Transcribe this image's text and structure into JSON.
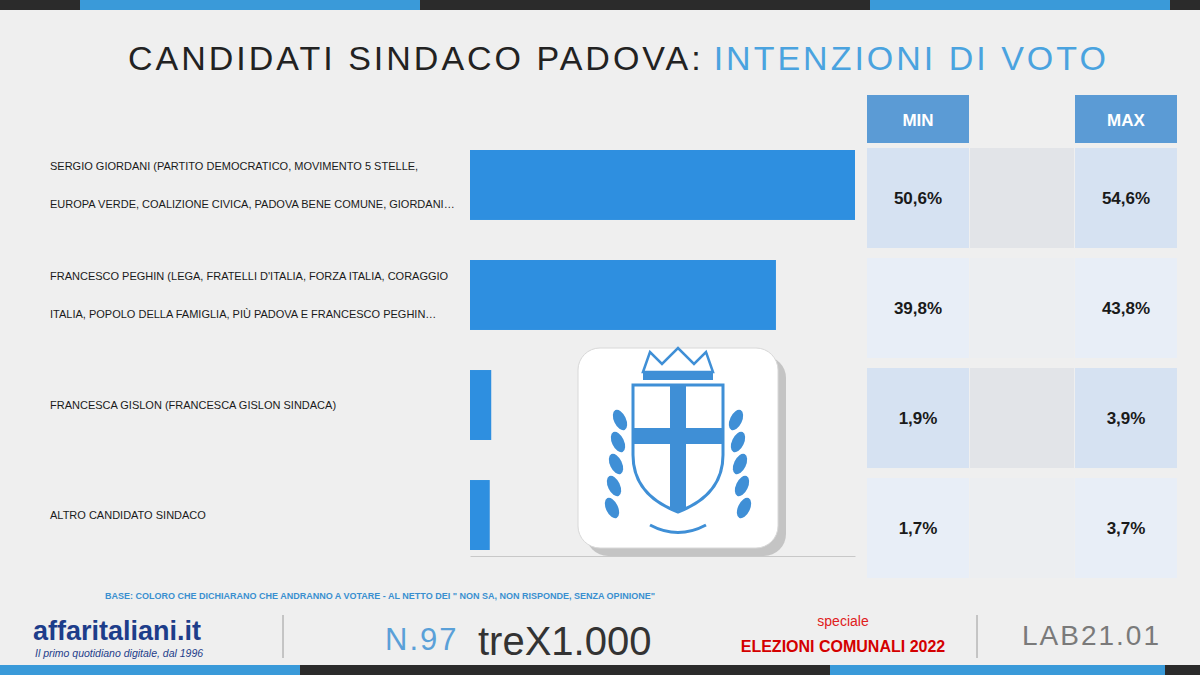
{
  "chart_data": {
    "type": "bar",
    "orientation": "horizontal",
    "title": "CANDIDATI SINDACO PADOVA:",
    "subtitle": "INTENZIONI DI VOTO",
    "categories": [
      "SERGIO GIORDANI (PARTITO DEMOCRATICO, MOVIMENTO 5 STELLE, EUROPA VERDE, COALIZIONE CIVICA, PADOVA BENE COMUNE, GIORDANI…",
      "FRANCESCO PEGHIN (LEGA, FRATELLI D'ITALIA, FORZA ITALIA, CORAGGIO ITALIA, POPOLO DELLA FAMIGLIA, PIÙ PADOVA E FRANCESCO PEGHIN…",
      "FRANCESCA GISLON (FRANCESCA GISLON SINDACA)",
      "ALTRO CANDIDATO SINDACO"
    ],
    "values": [
      52.6,
      41.8,
      2.9,
      2.7
    ],
    "color": "#2e8fe0",
    "xlim": [
      0,
      52.6
    ],
    "xticks": [],
    "tick_labels": false,
    "grid": false,
    "data_labels": false,
    "table": {
      "columns": [
        "MIN",
        "MAX"
      ],
      "rows": [
        [
          "50,6%",
          "54,6%"
        ],
        [
          "39,8%",
          "43,8%"
        ],
        [
          "1,9%",
          "3,9%"
        ],
        [
          "1,7%",
          "3,7%"
        ]
      ]
    }
  },
  "footer": {
    "note": "BASE: COLORO CHE DICHIARANO CHE ANDRANNO A VOTARE - AL NETTO DEI \" NON SA, NON RISPONDE, SENZA OPINIONE\"",
    "brand": "affaritaliani.it",
    "tagline": "Il primo quotidiano digitale, dal 1996",
    "issue": "N.97",
    "partner": "treX1.000",
    "special": "speciale",
    "event": "ELEZIONI COMUNALI 2022",
    "lab": "LAB21.01"
  }
}
